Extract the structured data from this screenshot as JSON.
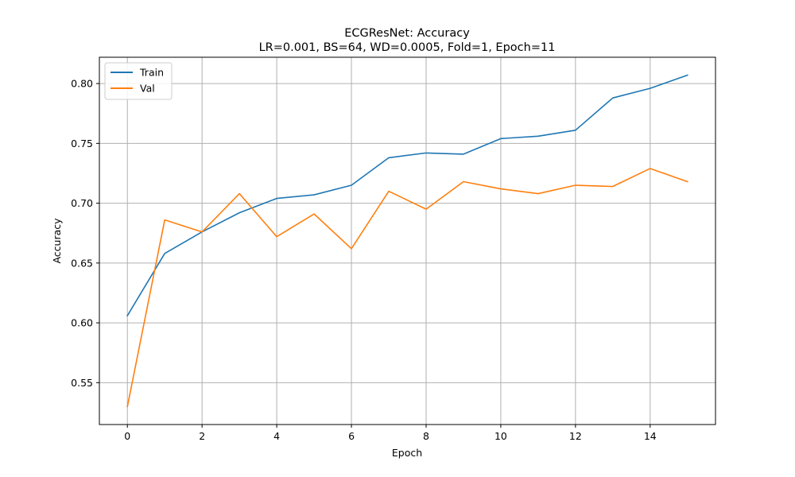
{
  "chart_data": {
    "type": "line",
    "title": "ECGResNet: Accuracy",
    "subtitle": "LR=0.001, BS=64, WD=0.0005, Fold=1, Epoch=11",
    "xlabel": "Epoch",
    "ylabel": "Accuracy",
    "xlim": [
      -0.75,
      15.75
    ],
    "ylim": [
      0.515,
      0.822
    ],
    "xticks": [
      0,
      2,
      4,
      6,
      8,
      10,
      12,
      14
    ],
    "xtick_labels": [
      "0",
      "2",
      "4",
      "6",
      "8",
      "10",
      "12",
      "14"
    ],
    "yticks": [
      0.55,
      0.6,
      0.65,
      0.7,
      0.75,
      0.8
    ],
    "ytick_labels": [
      "0.55",
      "0.60",
      "0.65",
      "0.70",
      "0.75",
      "0.80"
    ],
    "grid": true,
    "legend_position": "top-left",
    "x": [
      0,
      1,
      2,
      3,
      4,
      5,
      6,
      7,
      8,
      9,
      10,
      11,
      12,
      13,
      14,
      15
    ],
    "series": [
      {
        "name": "Train",
        "color": "#1f77b4",
        "values": [
          0.606,
          0.658,
          0.676,
          0.692,
          0.704,
          0.707,
          0.715,
          0.738,
          0.742,
          0.741,
          0.754,
          0.756,
          0.761,
          0.788,
          0.796,
          0.807
        ]
      },
      {
        "name": "Val",
        "color": "#ff7f0e",
        "values": [
          0.53,
          0.686,
          0.676,
          0.708,
          0.672,
          0.691,
          0.662,
          0.71,
          0.695,
          0.718,
          0.712,
          0.708,
          0.715,
          0.714,
          0.729,
          0.718
        ]
      }
    ]
  }
}
